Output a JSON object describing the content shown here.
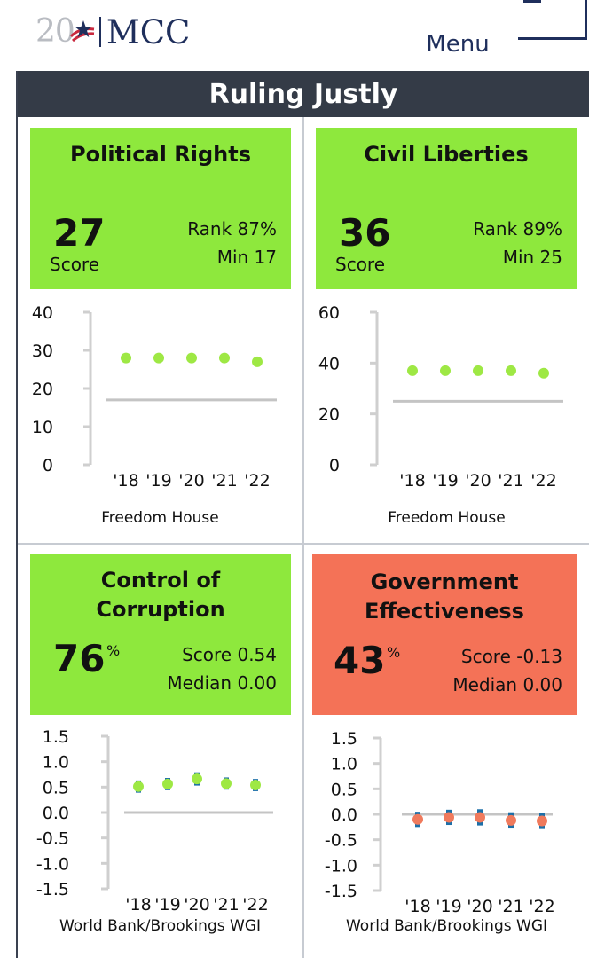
{
  "header": {
    "logo_year": "20",
    "logo_text": "MCC",
    "menu_label": "Menu"
  },
  "panel": {
    "title": "Ruling Justly"
  },
  "colors": {
    "pass_green": "#8ee83d",
    "fail_red": "#f47257",
    "dot_green": "#9ee844",
    "dot_red": "#f07a5c",
    "whisker_blue": "#1c6fa8",
    "threshold_gray": "#c4c4c4",
    "title_bar": "#343b47",
    "brand_navy": "#1f2f5c"
  },
  "indicators": [
    {
      "title": "Political Rights",
      "score_value": "27",
      "score_label": "Score",
      "rank_text": "Rank 87%",
      "threshold_text": "Min 17",
      "status": "pass",
      "source": "Freedom House",
      "chart_data": {
        "type": "scatter",
        "x": [
          "'18",
          "'19",
          "'20",
          "'21",
          "'22"
        ],
        "y": [
          28,
          28,
          28,
          28,
          27
        ],
        "ylim": [
          0,
          40
        ],
        "yticks": [
          "40",
          "30",
          "20",
          "10",
          "0"
        ],
        "ytick_values": [
          40,
          30,
          20,
          10,
          0
        ],
        "threshold": 17,
        "threshold_style": "line"
      }
    },
    {
      "title": "Civil Liberties",
      "score_value": "36",
      "score_label": "Score",
      "rank_text": "Rank 89%",
      "threshold_text": "Min 25",
      "status": "pass",
      "source": "Freedom House",
      "chart_data": {
        "type": "scatter",
        "x": [
          "'18",
          "'19",
          "'20",
          "'21",
          "'22"
        ],
        "y": [
          37,
          37,
          37,
          37,
          36
        ],
        "ylim": [
          0,
          60
        ],
        "yticks": [
          "60",
          "40",
          "20",
          "0"
        ],
        "ytick_values": [
          60,
          40,
          20,
          0
        ],
        "threshold": 25,
        "threshold_style": "line"
      }
    },
    {
      "title": "Control of Corruption",
      "score_value": "76",
      "score_suffix": "%",
      "rank_text": "Score 0.54",
      "threshold_text": "Median 0.00",
      "status": "pass",
      "source": "World Bank/Brookings WGI",
      "chart_data": {
        "type": "scatter",
        "x": [
          "'18",
          "'19",
          "'20",
          "'21",
          "'22"
        ],
        "y": [
          0.51,
          0.56,
          0.66,
          0.57,
          0.54
        ],
        "err": [
          0.12,
          0.12,
          0.13,
          0.12,
          0.12
        ],
        "ylim": [
          -1.5,
          1.5
        ],
        "yticks": [
          "1.5",
          "1.0",
          "0.5",
          "0.0",
          "-0.5",
          "-1.0",
          "-1.5"
        ],
        "ytick_values": [
          1.5,
          1.0,
          0.5,
          0.0,
          -0.5,
          -1.0,
          -1.5
        ],
        "threshold": 0.0,
        "threshold_style": "line"
      }
    },
    {
      "title": "Government Effectiveness",
      "score_value": "43",
      "score_suffix": "%",
      "rank_text": "Score -0.13",
      "threshold_text": "Median 0.00",
      "status": "fail",
      "source": "World Bank/Brookings WGI",
      "chart_data": {
        "type": "scatter",
        "x": [
          "'18",
          "'19",
          "'20",
          "'21",
          "'22"
        ],
        "y": [
          -0.1,
          -0.06,
          -0.06,
          -0.12,
          -0.13
        ],
        "err": [
          0.15,
          0.15,
          0.16,
          0.16,
          0.16
        ],
        "ylim": [
          -1.5,
          1.5
        ],
        "yticks": [
          "1.5",
          "1.0",
          "0.5",
          "0.0",
          "-0.5",
          "-1.0",
          "-1.5"
        ],
        "ytick_values": [
          1.5,
          1.0,
          0.5,
          0.0,
          -0.5,
          -1.0,
          -1.5
        ],
        "threshold": 0.0,
        "threshold_style": "line"
      }
    }
  ]
}
